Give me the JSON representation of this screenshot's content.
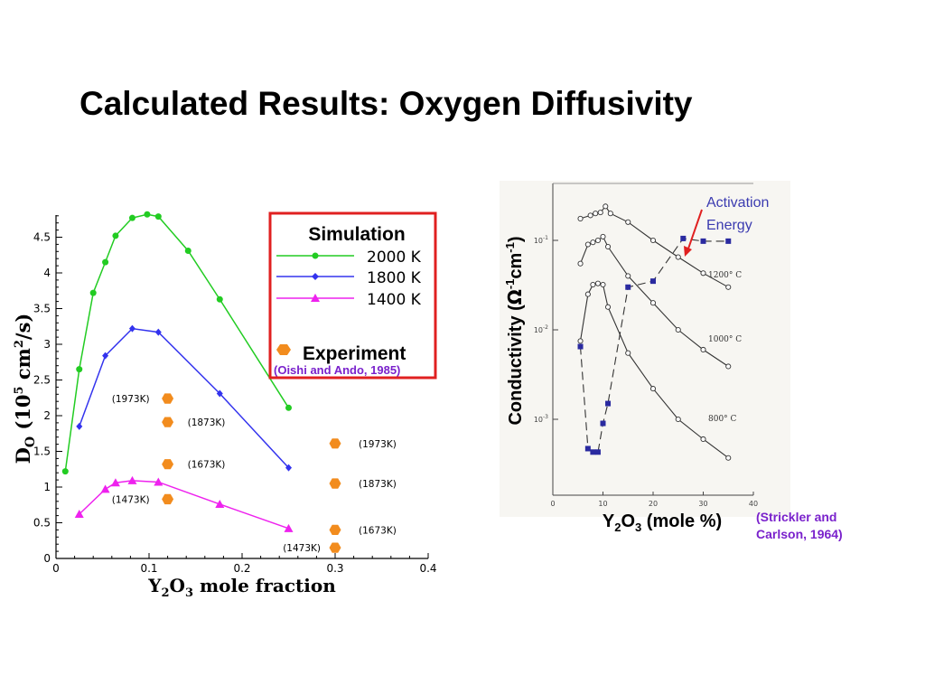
{
  "slide": {
    "title": "Calculated Results: Oxygen Diffusivity"
  },
  "chart_data": [
    {
      "type": "line",
      "xlabel": "Y2O3 mole fraction",
      "ylabel": "DO (10^5 cm2/s)",
      "xlim": [
        0,
        0.4
      ],
      "ylim": [
        0,
        4.8
      ],
      "x_ticks": [
        "0",
        "0.1",
        "0.2",
        "0.3",
        "0.4"
      ],
      "y_ticks": [
        "0",
        "0.5",
        "1",
        "1.5",
        "2",
        "2.5",
        "3",
        "3.5",
        "4",
        "4.5"
      ],
      "legend": {
        "title": "Simulation",
        "placement": "top-right",
        "entries": [
          "2000 K",
          "1800 K",
          "1400 K"
        ],
        "experiment_label": "Experiment",
        "experiment_citation": "(Oishi and Ando, 1985)"
      },
      "series": [
        {
          "name": "2000 K",
          "color": "#22cc22",
          "marker": "circle",
          "x": [
            0.01,
            0.025,
            0.04,
            0.053,
            0.064,
            0.082,
            0.098,
            0.11,
            0.142,
            0.176,
            0.25
          ],
          "y": [
            1.22,
            2.65,
            3.72,
            4.15,
            4.52,
            4.77,
            4.82,
            4.79,
            4.31,
            3.63,
            2.11
          ]
        },
        {
          "name": "1800 K",
          "color": "#3333ee",
          "marker": "diamond",
          "x": [
            0.025,
            0.053,
            0.082,
            0.11,
            0.176,
            0.25
          ],
          "y": [
            1.85,
            2.84,
            3.22,
            3.17,
            2.31,
            1.27
          ]
        },
        {
          "name": "1400 K",
          "color": "#ee22ee",
          "marker": "triangle",
          "x": [
            0.025,
            0.053,
            0.064,
            0.082,
            0.11,
            0.176,
            0.25
          ],
          "y": [
            0.62,
            0.97,
            1.06,
            1.09,
            1.07,
            0.76,
            0.42
          ]
        }
      ],
      "experiment_points": {
        "color": "#f28c1e",
        "points": [
          {
            "x": 0.12,
            "y": 2.24,
            "label": "(1973K)"
          },
          {
            "x": 0.12,
            "y": 1.91,
            "label": "(1873K)"
          },
          {
            "x": 0.12,
            "y": 1.32,
            "label": "(1673K)"
          },
          {
            "x": 0.12,
            "y": 0.83,
            "label": "(1473K)"
          },
          {
            "x": 0.3,
            "y": 1.61,
            "label": "(1973K)"
          },
          {
            "x": 0.3,
            "y": 1.05,
            "label": "(1873K)"
          },
          {
            "x": 0.3,
            "y": 0.4,
            "label": "(1673K)"
          },
          {
            "x": 0.3,
            "y": 0.15,
            "label": "(1473K)"
          }
        ]
      }
    },
    {
      "type": "line",
      "ylog": true,
      "xlabel": "Y2O3 (mole %)",
      "ylabel": "Conductivity (Ω-1cm-1)",
      "xlim": [
        0,
        40
      ],
      "x_ticks": [
        "0",
        "10",
        "20",
        "30",
        "40"
      ],
      "y_ticks": [
        "10-1",
        "10-2",
        "10-3"
      ],
      "citation_line1": "(Strickler and",
      "citation_line2": "Carlson, 1964)",
      "annotation_line1": "Activation",
      "annotation_line2": "Energy",
      "curve_labels": [
        "1200° C",
        "1000° C",
        "800° C"
      ],
      "curves": [
        {
          "name": "1200° C",
          "x": [
            5.5,
            7.5,
            8.5,
            9.5,
            10.5,
            11.5,
            15,
            20,
            25,
            30,
            35
          ],
          "y": [
            0.175,
            0.19,
            0.2,
            0.205,
            0.24,
            0.2,
            0.16,
            0.1,
            0.065,
            0.043,
            0.03
          ]
        },
        {
          "name": "1000° C",
          "x": [
            5.5,
            7,
            8,
            9,
            10,
            11,
            15,
            20,
            25,
            30,
            35
          ],
          "y": [
            0.055,
            0.09,
            0.095,
            0.1,
            0.11,
            0.085,
            0.04,
            0.02,
            0.01,
            0.006,
            0.0039
          ]
        },
        {
          "name": "800° C",
          "x": [
            5.5,
            7,
            8,
            9,
            10,
            11,
            15,
            20,
            25,
            30,
            35
          ],
          "y": [
            0.0075,
            0.025,
            0.032,
            0.033,
            0.032,
            0.018,
            0.0055,
            0.0022,
            0.001,
            0.0006,
            0.00037
          ]
        }
      ],
      "activation_energy": {
        "x": [
          5.5,
          7,
          8,
          9,
          10,
          11,
          15,
          20,
          26,
          30,
          35
        ],
        "y": [
          0.0065,
          0.00047,
          0.00043,
          0.00043,
          0.0009,
          0.0015,
          0.03,
          0.035,
          0.105,
          0.098,
          0.098
        ]
      }
    }
  ]
}
